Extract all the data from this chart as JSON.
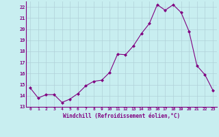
{
  "x": [
    0,
    1,
    2,
    3,
    4,
    5,
    6,
    7,
    8,
    9,
    10,
    11,
    12,
    13,
    14,
    15,
    16,
    17,
    18,
    19,
    20,
    21,
    22,
    23
  ],
  "y": [
    14.7,
    13.8,
    14.1,
    14.1,
    13.4,
    13.7,
    14.2,
    14.9,
    15.3,
    15.4,
    16.1,
    17.75,
    17.7,
    18.5,
    19.6,
    20.5,
    22.2,
    21.7,
    22.2,
    21.5,
    19.8,
    16.7,
    15.9,
    14.5
  ],
  "line_color": "#800080",
  "marker": "D",
  "marker_size": 2,
  "bg_color": "#c8eef0",
  "grid_color": "#b0d0d8",
  "xlabel": "Windchill (Refroidissement éolien,°C)",
  "xlabel_color": "#800080",
  "tick_color": "#800080",
  "label_color": "#800080",
  "spine_color": "#800080",
  "ylim": [
    13,
    22.5
  ],
  "xlim": [
    -0.5,
    23.5
  ],
  "yticks": [
    13,
    14,
    15,
    16,
    17,
    18,
    19,
    20,
    21,
    22
  ],
  "xticks": [
    0,
    1,
    2,
    3,
    4,
    5,
    6,
    7,
    8,
    9,
    10,
    11,
    12,
    13,
    14,
    15,
    16,
    17,
    18,
    19,
    20,
    21,
    22,
    23
  ]
}
